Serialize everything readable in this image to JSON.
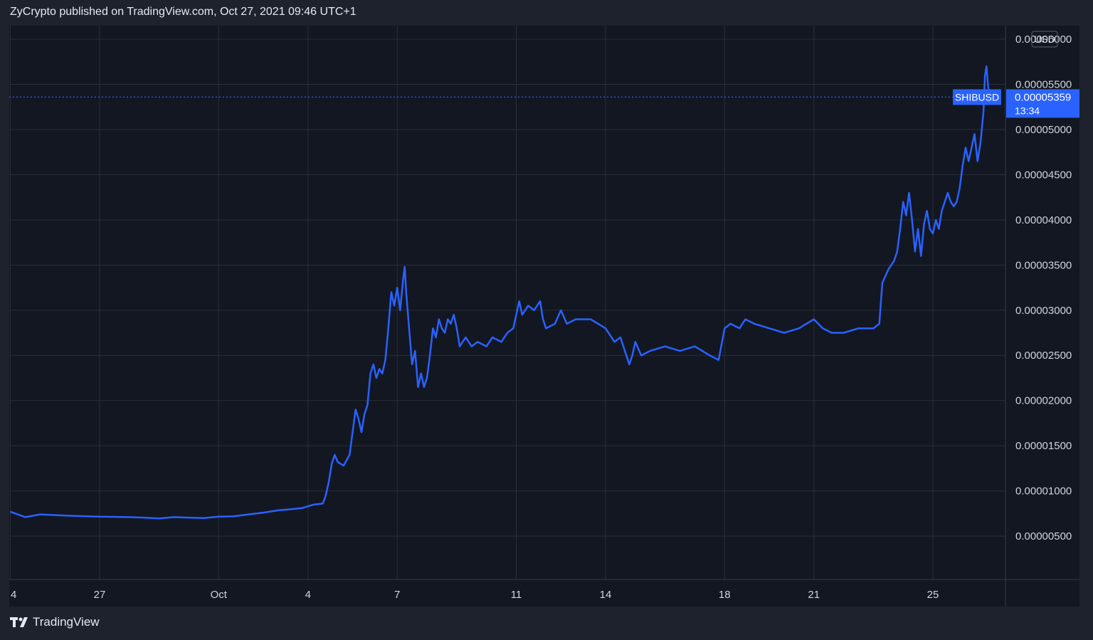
{
  "header": {
    "text": "ZyCrypto published on TradingView.com, Oct 27, 2021 09:46 UTC+1"
  },
  "footer": {
    "brand": "TradingView",
    "logo_icon": "tradingview-logo-icon"
  },
  "colors": {
    "background": "#131722",
    "outer": "#1e222d",
    "grid": "#2a2e39",
    "line": "#2962ff",
    "text": "#d1d4dc"
  },
  "chart_data": {
    "type": "line",
    "symbol": "SHIBUSD",
    "currency": "USD",
    "last_value": "0.00005359",
    "last_time": "13:34",
    "yticks": [
      "0.00000500",
      "0.00001000",
      "0.00001500",
      "0.00002000",
      "0.00002500",
      "0.00003000",
      "0.00003500",
      "0.00004000",
      "0.00004500",
      "0.00005000",
      "0.00005500",
      "0.00006000"
    ],
    "xticks": [
      {
        "label": "4",
        "day": -3
      },
      {
        "label": "27",
        "day": 0
      },
      {
        "label": "Oct",
        "day": 4
      },
      {
        "label": "4",
        "day": 7
      },
      {
        "label": "7",
        "day": 10
      },
      {
        "label": "11",
        "day": 14
      },
      {
        "label": "14",
        "day": 17
      },
      {
        "label": "18",
        "day": 21
      },
      {
        "label": "21",
        "day": 24
      },
      {
        "label": "25",
        "day": 28
      }
    ],
    "ylim": [
      2e-07,
      6.15e-05
    ],
    "series": [
      {
        "values": [
          [
            -3.0,
            7.7e-06
          ],
          [
            -2.7,
            7.35e-06
          ],
          [
            -2.5,
            7.1e-06
          ],
          [
            -2.0,
            7.4e-06
          ],
          [
            -1.0,
            7.25e-06
          ],
          [
            0.0,
            7.15e-06
          ],
          [
            1.0,
            7.1e-06
          ],
          [
            1.5,
            7.05e-06
          ],
          [
            2.0,
            6.95e-06
          ],
          [
            2.5,
            7.1e-06
          ],
          [
            3.0,
            7.05e-06
          ],
          [
            3.5,
            7e-06
          ],
          [
            4.0,
            7.15e-06
          ],
          [
            4.5,
            7.2e-06
          ],
          [
            5.0,
            7.4e-06
          ],
          [
            5.5,
            7.6e-06
          ],
          [
            6.0,
            7.85e-06
          ],
          [
            6.5,
            8e-06
          ],
          [
            6.8,
            8.1e-06
          ],
          [
            7.0,
            8.3e-06
          ],
          [
            7.2,
            8.5e-06
          ],
          [
            7.5,
            8.6e-06
          ],
          [
            7.6,
            9.5e-06
          ],
          [
            7.7,
            1.1e-05
          ],
          [
            7.8,
            1.3e-05
          ],
          [
            7.9,
            1.4e-05
          ],
          [
            8.0,
            1.32e-05
          ],
          [
            8.2,
            1.28e-05
          ],
          [
            8.4,
            1.4e-05
          ],
          [
            8.5,
            1.65e-05
          ],
          [
            8.6,
            1.9e-05
          ],
          [
            8.7,
            1.8e-05
          ],
          [
            8.8,
            1.65e-05
          ],
          [
            8.9,
            1.85e-05
          ],
          [
            9.0,
            1.95e-05
          ],
          [
            9.1,
            2.3e-05
          ],
          [
            9.2,
            2.4e-05
          ],
          [
            9.3,
            2.25e-05
          ],
          [
            9.4,
            2.35e-05
          ],
          [
            9.5,
            2.3e-05
          ],
          [
            9.6,
            2.45e-05
          ],
          [
            9.7,
            2.8e-05
          ],
          [
            9.8,
            3.2e-05
          ],
          [
            9.9,
            3.05e-05
          ],
          [
            10.0,
            3.25e-05
          ],
          [
            10.1,
            3e-05
          ],
          [
            10.2,
            3.35e-05
          ],
          [
            10.25,
            3.48e-05
          ],
          [
            10.3,
            3.2e-05
          ],
          [
            10.4,
            2.8e-05
          ],
          [
            10.5,
            2.4e-05
          ],
          [
            10.6,
            2.55e-05
          ],
          [
            10.7,
            2.15e-05
          ],
          [
            10.8,
            2.3e-05
          ],
          [
            10.9,
            2.15e-05
          ],
          [
            11.0,
            2.25e-05
          ],
          [
            11.1,
            2.5e-05
          ],
          [
            11.2,
            2.8e-05
          ],
          [
            11.3,
            2.7e-05
          ],
          [
            11.4,
            2.9e-05
          ],
          [
            11.5,
            2.8e-05
          ],
          [
            11.6,
            2.75e-05
          ],
          [
            11.7,
            2.9e-05
          ],
          [
            11.8,
            2.85e-05
          ],
          [
            11.9,
            2.95e-05
          ],
          [
            12.0,
            2.8e-05
          ],
          [
            12.1,
            2.6e-05
          ],
          [
            12.3,
            2.7e-05
          ],
          [
            12.5,
            2.6e-05
          ],
          [
            12.7,
            2.65e-05
          ],
          [
            13.0,
            2.6e-05
          ],
          [
            13.2,
            2.7e-05
          ],
          [
            13.5,
            2.65e-05
          ],
          [
            13.7,
            2.75e-05
          ],
          [
            13.9,
            2.8e-05
          ],
          [
            14.0,
            2.95e-05
          ],
          [
            14.1,
            3.1e-05
          ],
          [
            14.2,
            2.95e-05
          ],
          [
            14.4,
            3.05e-05
          ],
          [
            14.6,
            3e-05
          ],
          [
            14.8,
            3.1e-05
          ],
          [
            14.9,
            2.9e-05
          ],
          [
            15.0,
            2.8e-05
          ],
          [
            15.3,
            2.85e-05
          ],
          [
            15.5,
            3e-05
          ],
          [
            15.7,
            2.85e-05
          ],
          [
            16.0,
            2.9e-05
          ],
          [
            16.5,
            2.9e-05
          ],
          [
            17.0,
            2.8e-05
          ],
          [
            17.3,
            2.65e-05
          ],
          [
            17.5,
            2.7e-05
          ],
          [
            17.7,
            2.5e-05
          ],
          [
            17.8,
            2.4e-05
          ],
          [
            17.9,
            2.5e-05
          ],
          [
            18.0,
            2.65e-05
          ],
          [
            18.2,
            2.5e-05
          ],
          [
            18.5,
            2.55e-05
          ],
          [
            19.0,
            2.6e-05
          ],
          [
            19.5,
            2.55e-05
          ],
          [
            20.0,
            2.6e-05
          ],
          [
            20.5,
            2.5e-05
          ],
          [
            20.8,
            2.45e-05
          ],
          [
            21.0,
            2.8e-05
          ],
          [
            21.2,
            2.85e-05
          ],
          [
            21.5,
            2.8e-05
          ],
          [
            21.7,
            2.9e-05
          ],
          [
            22.0,
            2.85e-05
          ],
          [
            22.5,
            2.8e-05
          ],
          [
            23.0,
            2.75e-05
          ],
          [
            23.5,
            2.8e-05
          ],
          [
            24.0,
            2.9e-05
          ],
          [
            24.3,
            2.8e-05
          ],
          [
            24.6,
            2.75e-05
          ],
          [
            25.0,
            2.75e-05
          ],
          [
            25.5,
            2.8e-05
          ],
          [
            26.0,
            2.8e-05
          ],
          [
            26.2,
            2.85e-05
          ],
          [
            26.3,
            3.3e-05
          ],
          [
            26.5,
            3.45e-05
          ],
          [
            26.7,
            3.55e-05
          ],
          [
            26.8,
            3.65e-05
          ],
          [
            26.9,
            3.9e-05
          ],
          [
            27.0,
            4.2e-05
          ],
          [
            27.1,
            4.05e-05
          ],
          [
            27.2,
            4.3e-05
          ],
          [
            27.3,
            4e-05
          ],
          [
            27.4,
            3.65e-05
          ],
          [
            27.5,
            3.9e-05
          ],
          [
            27.6,
            3.6e-05
          ],
          [
            27.7,
            3.95e-05
          ],
          [
            27.8,
            4.1e-05
          ],
          [
            27.9,
            3.9e-05
          ],
          [
            28.0,
            3.85e-05
          ],
          [
            28.1,
            4e-05
          ],
          [
            28.2,
            3.9e-05
          ],
          [
            28.3,
            4.1e-05
          ],
          [
            28.4,
            4.2e-05
          ],
          [
            28.5,
            4.3e-05
          ],
          [
            28.6,
            4.2e-05
          ],
          [
            28.7,
            4.15e-05
          ],
          [
            28.8,
            4.2e-05
          ],
          [
            28.9,
            4.35e-05
          ],
          [
            29.0,
            4.6e-05
          ],
          [
            29.1,
            4.8e-05
          ],
          [
            29.2,
            4.65e-05
          ],
          [
            29.3,
            4.8e-05
          ],
          [
            29.4,
            4.95e-05
          ],
          [
            29.5,
            4.65e-05
          ],
          [
            29.6,
            4.85e-05
          ],
          [
            29.7,
            5.2e-05
          ],
          [
            29.75,
            5.6e-05
          ],
          [
            29.8,
            5.7e-05
          ],
          [
            29.85,
            5.5e-05
          ],
          [
            29.9,
            5.359e-05
          ]
        ]
      }
    ]
  }
}
